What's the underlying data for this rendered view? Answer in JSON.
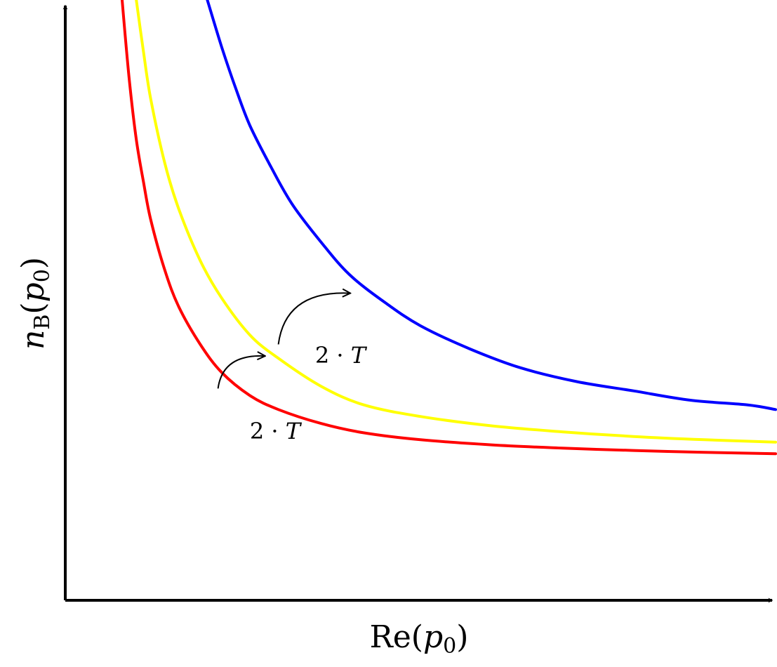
{
  "chart_data": {
    "type": "line",
    "xlabel": {
      "prefix": "Re(",
      "var": "p",
      "sub": "0",
      "suffix": ")"
    },
    "ylabel": {
      "var": "n",
      "sub": "B",
      "open": "(",
      "arg": "p",
      "argsub": "0",
      "close": ")"
    },
    "series": [
      {
        "color": "#ff0000",
        "points": [
          [
            0.08,
            1.29
          ],
          [
            0.09,
            1.12
          ],
          [
            0.1,
            0.99
          ],
          [
            0.11,
            0.9
          ],
          [
            0.12,
            0.82
          ],
          [
            0.14,
            0.71
          ],
          [
            0.16,
            0.63
          ],
          [
            0.19,
            0.55
          ],
          [
            0.22,
            0.49
          ],
          [
            0.26,
            0.44
          ],
          [
            0.3,
            0.41
          ],
          [
            0.36,
            0.38
          ],
          [
            0.42,
            0.36
          ],
          [
            0.5,
            0.345
          ],
          [
            0.6,
            0.334
          ],
          [
            0.7,
            0.327
          ],
          [
            0.8,
            0.322
          ],
          [
            0.9,
            0.318
          ],
          [
            1.0,
            0.315
          ]
        ]
      },
      {
        "color": "#ffff00",
        "points": [
          [
            0.1,
            1.29
          ],
          [
            0.11,
            1.18
          ],
          [
            0.12,
            1.08
          ],
          [
            0.14,
            0.94
          ],
          [
            0.16,
            0.84
          ],
          [
            0.19,
            0.73
          ],
          [
            0.22,
            0.65
          ],
          [
            0.26,
            0.57
          ],
          [
            0.3,
            0.52
          ],
          [
            0.36,
            0.46
          ],
          [
            0.42,
            0.42
          ],
          [
            0.5,
            0.395
          ],
          [
            0.6,
            0.375
          ],
          [
            0.7,
            0.362
          ],
          [
            0.8,
            0.352
          ],
          [
            0.9,
            0.345
          ],
          [
            1.0,
            0.34
          ]
        ]
      },
      {
        "color": "#0000ff",
        "points": [
          [
            0.2,
            1.29
          ],
          [
            0.22,
            1.19
          ],
          [
            0.24,
            1.1
          ],
          [
            0.26,
            1.02
          ],
          [
            0.29,
            0.93
          ],
          [
            0.32,
            0.85
          ],
          [
            0.36,
            0.77
          ],
          [
            0.4,
            0.7
          ],
          [
            0.45,
            0.64
          ],
          [
            0.5,
            0.59
          ],
          [
            0.57,
            0.54
          ],
          [
            0.64,
            0.5
          ],
          [
            0.72,
            0.47
          ],
          [
            0.8,
            0.45
          ],
          [
            0.88,
            0.43
          ],
          [
            0.96,
            0.42
          ],
          [
            1.0,
            0.41
          ]
        ]
      }
    ],
    "annotations": [
      {
        "num": "2",
        "op": "·",
        "var": "T",
        "from": [
          0.215,
          0.455
        ],
        "to": [
          0.28,
          0.525
        ]
      },
      {
        "num": "2",
        "op": "·",
        "var": "T",
        "from": [
          0.3,
          0.55
        ],
        "to": [
          0.4,
          0.66
        ]
      }
    ]
  }
}
